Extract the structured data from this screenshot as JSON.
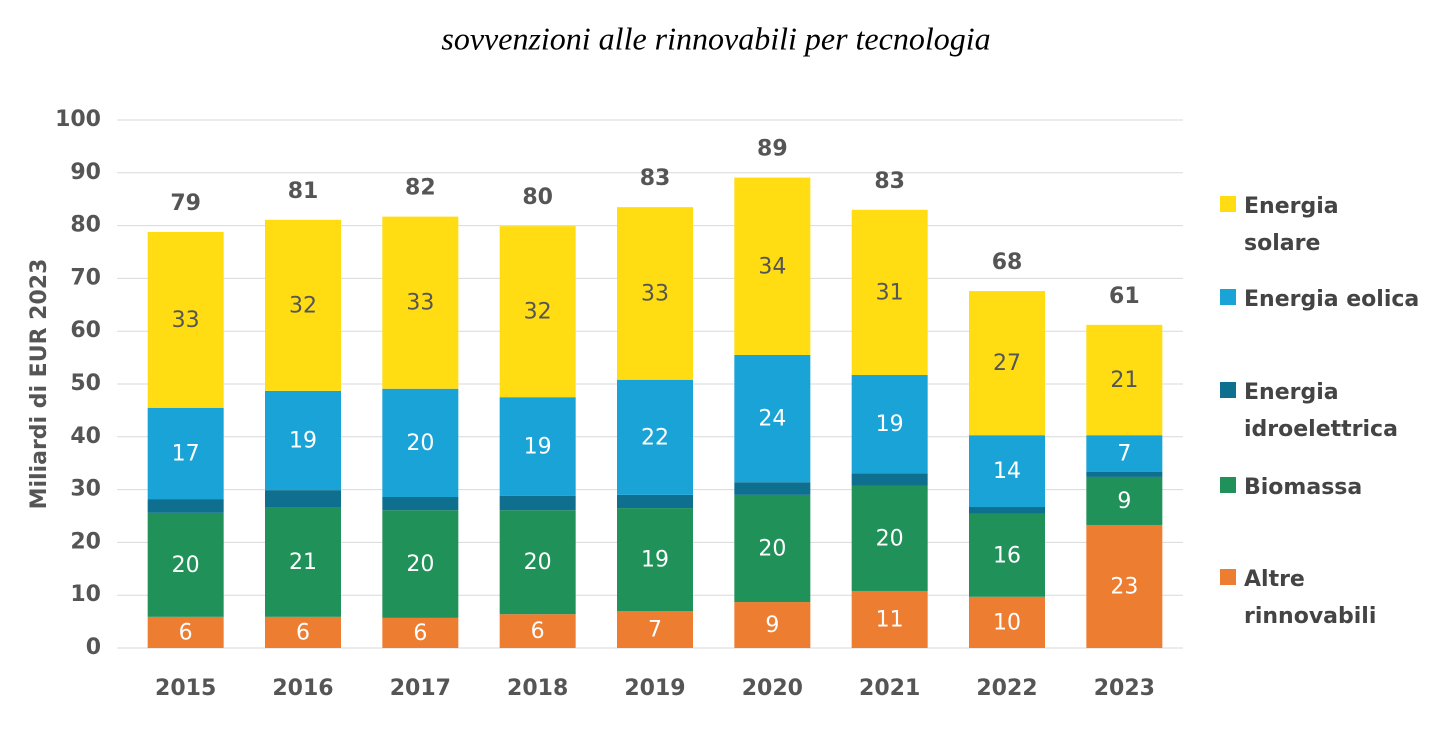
{
  "chart_data": {
    "type": "stacked_bar",
    "title": "sovvenzioni alle rinnovabili per tecnologia",
    "y_label": "Miliardi di EUR 2023",
    "categories": [
      "2015",
      "2016",
      "2017",
      "2018",
      "2019",
      "2020",
      "2021",
      "2022",
      "2023"
    ],
    "series": [
      {
        "name": "Altre rinnovabili",
        "color": "#ED7D31",
        "values": [
          5.9,
          5.9,
          5.7,
          6.4,
          7.0,
          8.7,
          10.8,
          9.7,
          23.3
        ],
        "value_labels": [
          "6",
          "6",
          "6",
          "6",
          "7",
          "9",
          "11",
          "10",
          "23"
        ]
      },
      {
        "name": "Biomassa",
        "color": "#21915A",
        "values": [
          19.7,
          20.8,
          20.4,
          19.7,
          19.5,
          20.3,
          19.9,
          15.7,
          9.1
        ],
        "value_labels": [
          "20",
          "21",
          "20",
          "20",
          "19",
          "20",
          "20",
          "16",
          "9"
        ]
      },
      {
        "name": "Energia idroelettrica",
        "color": "#0E6F8E",
        "values": [
          2.6,
          3.2,
          2.5,
          2.7,
          2.5,
          2.4,
          2.4,
          1.3,
          1.0
        ]
      },
      {
        "name": "Energia eolica",
        "color": "#19A3D6",
        "values": [
          17.3,
          18.8,
          20.5,
          18.7,
          21.8,
          24.1,
          18.6,
          13.6,
          6.9
        ],
        "value_labels": [
          "17",
          "19",
          "20",
          "19",
          "22",
          "24",
          "19",
          "14",
          "7"
        ]
      },
      {
        "name": "Energia solare",
        "color": "#FFDD12",
        "values": [
          33.3,
          32.4,
          32.6,
          32.4,
          32.7,
          33.6,
          31.3,
          27.3,
          20.9
        ],
        "value_labels": [
          "33",
          "32",
          "33",
          "32",
          "33",
          "34",
          "31",
          "27",
          "21"
        ]
      }
    ],
    "totals": [
      79,
      81,
      82,
      80,
      83,
      89,
      83,
      68,
      61
    ],
    "ylim": [
      0,
      100
    ],
    "yticks": [
      0,
      10,
      20,
      30,
      40,
      50,
      60,
      70,
      80,
      90,
      100
    ],
    "grid": true,
    "legend": "right"
  }
}
